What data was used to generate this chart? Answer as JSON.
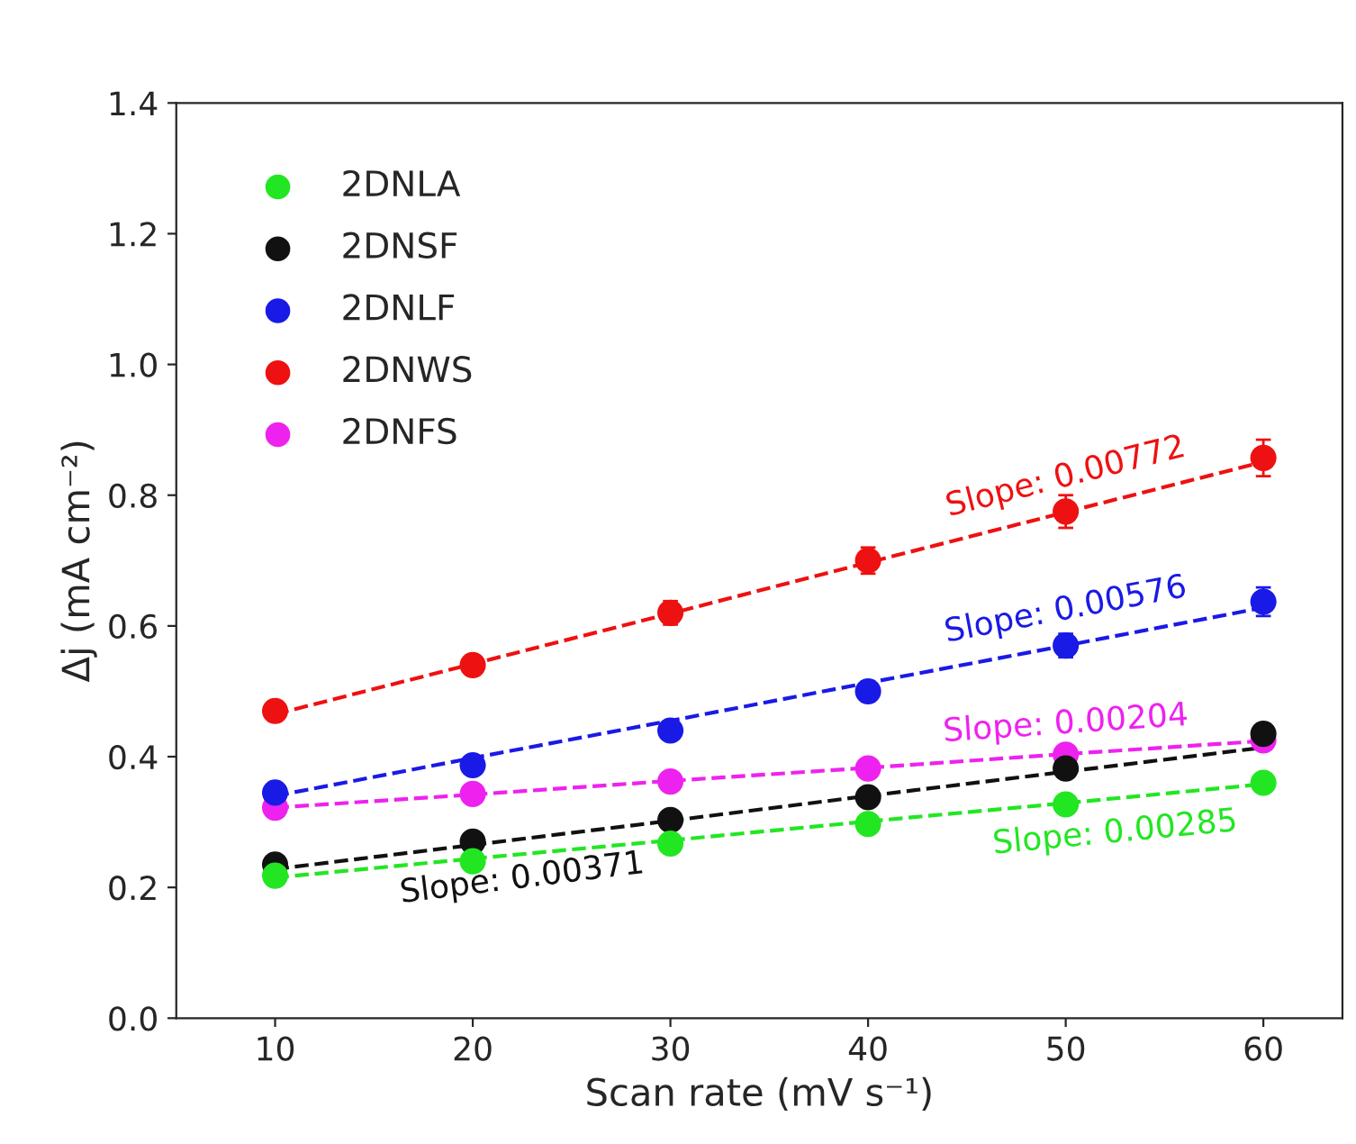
{
  "chart_data": {
    "type": "scatter",
    "xlabel": "Scan rate (mV s⁻¹)",
    "ylabel": "Δj (mA cm⁻²)",
    "x": [
      10,
      20,
      30,
      40,
      50,
      60
    ],
    "xlim": [
      5,
      64
    ],
    "xticks": [
      10,
      20,
      30,
      40,
      50,
      60
    ],
    "ylim": [
      0,
      1.4
    ],
    "yticks": [
      {
        "value": 0,
        "label": "0.0"
      },
      0.2,
      0.4,
      0.6,
      0.8,
      {
        "value": 1,
        "label": "1.0"
      },
      1.2,
      1.4
    ],
    "legend": "top left",
    "grid": false,
    "series": [
      {
        "name": "2DNLA",
        "color": "#22e622",
        "marker": "circle",
        "values": [
          0.218,
          0.24,
          0.267,
          0.297,
          0.327,
          0.36
        ],
        "errors": [
          0.01,
          0.01,
          0.01,
          0.01,
          0.01,
          0.012
        ]
      },
      {
        "name": "2DNSF",
        "color": "#111111",
        "marker": "circle",
        "values": [
          0.235,
          0.27,
          0.303,
          0.338,
          0.382,
          0.435
        ],
        "errors": [
          0.01,
          0.01,
          0.01,
          0.01,
          0.012,
          0.015
        ]
      },
      {
        "name": "2DNLF",
        "color": "#1a1ae6",
        "marker": "circle",
        "values": [
          0.345,
          0.387,
          0.44,
          0.5,
          0.57,
          0.637
        ],
        "errors": [
          0.01,
          0.012,
          0.012,
          0.015,
          0.018,
          0.022
        ]
      },
      {
        "name": "2DNWS",
        "color": "#ee1111",
        "marker": "circle",
        "values": [
          0.47,
          0.54,
          0.62,
          0.7,
          0.775,
          0.857
        ],
        "errors": [
          0.015,
          0.015,
          0.018,
          0.02,
          0.025,
          0.028
        ]
      },
      {
        "name": "2DNFS",
        "color": "#ee22ee",
        "marker": "circle",
        "values": [
          0.322,
          0.343,
          0.362,
          0.382,
          0.403,
          0.425
        ],
        "errors": [
          0.01,
          0.01,
          0.01,
          0.01,
          0.01,
          0.012
        ]
      },
      {
        "type": "line",
        "name": "Slope: 0.00285",
        "color": "#22e622",
        "values": [
          0.215,
          0.244,
          0.272,
          0.301,
          0.329,
          0.358
        ],
        "line_style": "dashed"
      },
      {
        "type": "line",
        "name": "Slope: 0.00371",
        "color": "#111111",
        "values": [
          0.228,
          0.265,
          0.302,
          0.34,
          0.377,
          0.414
        ],
        "line_style": "dashed"
      },
      {
        "type": "line",
        "name": "Slope: 0.00576",
        "color": "#1a1ae6",
        "values": [
          0.34,
          0.398,
          0.455,
          0.513,
          0.57,
          0.628
        ],
        "line_style": "dashed"
      },
      {
        "type": "line",
        "name": "Slope: 0.00772",
        "color": "#ee1111",
        "values": [
          0.465,
          0.542,
          0.619,
          0.697,
          0.774,
          0.851
        ],
        "line_style": "dashed"
      },
      {
        "type": "line",
        "name": "Slope: 0.00204",
        "color": "#ee22ee",
        "values": [
          0.322,
          0.342,
          0.363,
          0.383,
          0.404,
          0.424
        ],
        "line_style": "dashed"
      }
    ]
  }
}
